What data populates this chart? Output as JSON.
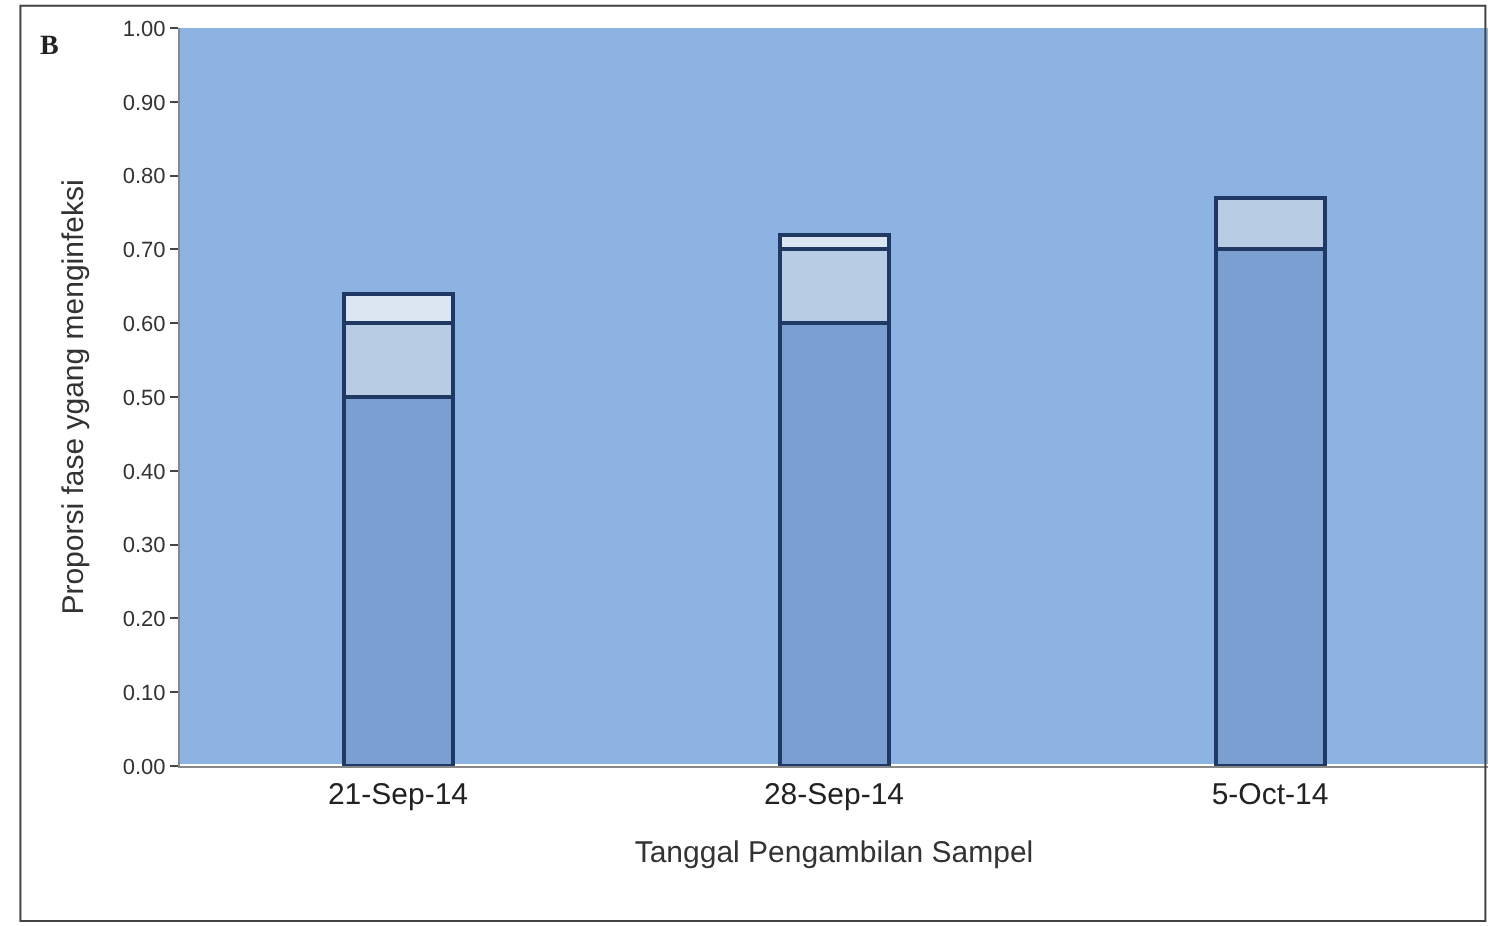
{
  "chart_data": {
    "type": "bar",
    "stacked": true,
    "xlabel": "Tanggal Pengambilan Sampel",
    "ylabel": "Proporsi fase ygang menginfeksi",
    "annotations": [
      "B"
    ],
    "categories": [
      "21-Sep-14",
      "28-Sep-14",
      "5-Oct-14"
    ],
    "series": [
      {
        "color": "#7a9fd0",
        "values": [
          0.5,
          0.6,
          0.7
        ]
      },
      {
        "color": "#b8cce4",
        "values": [
          0.1,
          0.1,
          0.07
        ]
      },
      {
        "color": "#dce6f2",
        "values": [
          0.04,
          0.02,
          null
        ]
      }
    ],
    "ylim": [
      0,
      1
    ],
    "yticks": [
      {
        "value": 0,
        "label": "0.00"
      },
      {
        "value": 0.1,
        "label": "0.10"
      },
      {
        "value": 0.2,
        "label": "0.20"
      },
      {
        "value": 0.3,
        "label": "0.30"
      },
      {
        "value": 0.4,
        "label": "0.40"
      },
      {
        "value": 0.5,
        "label": "0.50"
      },
      {
        "value": 0.6,
        "label": "0.60"
      },
      {
        "value": 0.7,
        "label": "0.70"
      },
      {
        "value": 0.8,
        "label": "0.80"
      },
      {
        "value": 0.9,
        "label": "0.90"
      },
      {
        "value": 1,
        "label": "1.00"
      }
    ],
    "grid": false
  }
}
